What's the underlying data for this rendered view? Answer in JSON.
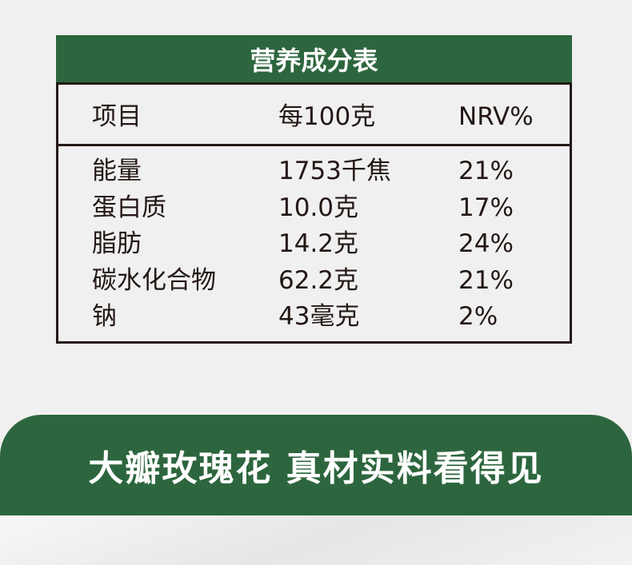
{
  "table": {
    "title": "营养成分表",
    "headers": [
      "项目",
      "每100克",
      "NRV%"
    ],
    "rows": [
      {
        "item": "能量",
        "per100g": "1753千焦",
        "nrv": "21%"
      },
      {
        "item": "蛋白质",
        "per100g": "10.0克",
        "nrv": "17%"
      },
      {
        "item": "脂肪",
        "per100g": "14.2克",
        "nrv": "24%"
      },
      {
        "item": "碳水化合物",
        "per100g": "62.2克",
        "nrv": "21%"
      },
      {
        "item": "钠",
        "per100g": "43毫克",
        "nrv": "2%"
      }
    ]
  },
  "banner": {
    "text": "大瓣玫瑰花 真材实料看得见"
  },
  "colors": {
    "brand_green": "#2d663e",
    "border": "#231815",
    "background": "#f0f0f0"
  }
}
